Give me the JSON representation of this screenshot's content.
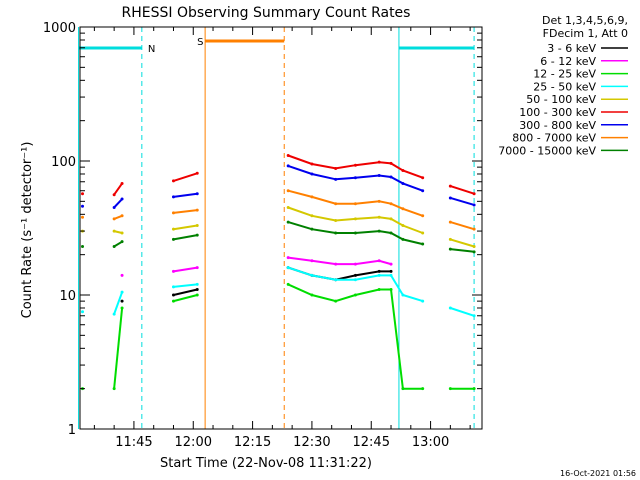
{
  "chart_data": {
    "type": "line",
    "title": "RHESSI Observing Summary Count Rates",
    "xlabel": "Start Time (22-Nov-08 11:31:22)",
    "ylabel": "Count Rate (s⁻¹ detector⁻¹)",
    "ylog": true,
    "ylim": [
      1,
      1000
    ],
    "xlim": [
      "11:31:22",
      "13:13:00"
    ],
    "x_ticks": [
      "11:45",
      "12:00",
      "12:15",
      "12:30",
      "12:45",
      "13:00"
    ],
    "y_ticks": [
      "1",
      "10",
      "100",
      "1000"
    ],
    "legend": {
      "placement": "right",
      "header": [
        "Det 1,3,4,5,6,9,",
        "FDecim 1, Att 0"
      ],
      "entries": [
        {
          "label": "3 - 6 keV",
          "color": "#000000"
        },
        {
          "label": "6 - 12 keV",
          "color": "#ff00ff"
        },
        {
          "label": "12 - 25 keV",
          "color": "#00dd00"
        },
        {
          "label": "25 - 50 keV",
          "color": "#00ffff"
        },
        {
          "label": "50 - 100 keV",
          "color": "#d4c800"
        },
        {
          "label": "100 - 300 keV",
          "color": "#ee0000"
        },
        {
          "label": "300 - 800 keV",
          "color": "#0000ee"
        },
        {
          "label": "800 - 7000 keV",
          "color": "#ff8000"
        },
        {
          "label": "7000 - 15000 keV",
          "color": "#008000"
        }
      ]
    },
    "annotations": [
      {
        "text": "N",
        "color": "#00dddd",
        "kind": "night",
        "spans": [
          [
            "11:31",
            "11:47"
          ],
          [
            "12:52",
            "13:11"
          ]
        ]
      },
      {
        "text": "S",
        "color": "#ff8000",
        "kind": "saa",
        "spans": [
          [
            "12:03",
            "12:23"
          ]
        ]
      }
    ],
    "series": [
      {
        "name": "100 - 300 keV",
        "color": "#ee0000",
        "points": [
          [
            "11:32",
            57
          ],
          [
            "11:40",
            56
          ],
          [
            "11:42",
            68
          ],
          [
            "11:55",
            71
          ],
          [
            "12:01",
            81
          ],
          [
            "12:24",
            110
          ],
          [
            "12:30",
            95
          ],
          [
            "12:36",
            88
          ],
          [
            "12:41",
            93
          ],
          [
            "12:47",
            98
          ],
          [
            "12:50",
            96
          ],
          [
            "12:53",
            85
          ],
          [
            "12:58",
            75
          ],
          [
            "13:05",
            65
          ],
          [
            "13:11",
            57
          ]
        ]
      },
      {
        "name": "300 - 800 keV",
        "color": "#0000ee",
        "points": [
          [
            "11:32",
            46
          ],
          [
            "11:40",
            45
          ],
          [
            "11:42",
            52
          ],
          [
            "11:55",
            54
          ],
          [
            "12:01",
            57
          ],
          [
            "12:24",
            92
          ],
          [
            "12:30",
            80
          ],
          [
            "12:36",
            73
          ],
          [
            "12:41",
            75
          ],
          [
            "12:47",
            78
          ],
          [
            "12:50",
            76
          ],
          [
            "12:53",
            68
          ],
          [
            "12:58",
            60
          ],
          [
            "13:05",
            53
          ],
          [
            "13:11",
            47
          ]
        ]
      },
      {
        "name": "800 - 7000 keV",
        "color": "#ff8000",
        "points": [
          [
            "11:32",
            38
          ],
          [
            "11:40",
            37
          ],
          [
            "11:42",
            39
          ],
          [
            "11:55",
            41
          ],
          [
            "12:01",
            43
          ],
          [
            "12:24",
            60
          ],
          [
            "12:30",
            54
          ],
          [
            "12:36",
            48
          ],
          [
            "12:41",
            48
          ],
          [
            "12:47",
            50
          ],
          [
            "12:50",
            48
          ],
          [
            "12:53",
            44
          ],
          [
            "12:58",
            39
          ],
          [
            "13:05",
            35
          ],
          [
            "13:11",
            31
          ]
        ]
      },
      {
        "name": "50 - 100 keV",
        "color": "#d4c800",
        "points": [
          [
            "11:32",
            30
          ],
          [
            "11:40",
            30
          ],
          [
            "11:42",
            29
          ],
          [
            "11:55",
            31
          ],
          [
            "12:01",
            33
          ],
          [
            "12:24",
            45
          ],
          [
            "12:30",
            39
          ],
          [
            "12:36",
            36
          ],
          [
            "12:41",
            37
          ],
          [
            "12:47",
            38
          ],
          [
            "12:50",
            37
          ],
          [
            "12:53",
            33
          ],
          [
            "12:58",
            29
          ],
          [
            "13:05",
            26
          ],
          [
            "13:11",
            23
          ]
        ]
      },
      {
        "name": "7000 - 15000 keV",
        "color": "#008000",
        "points": [
          [
            "11:32",
            23
          ],
          [
            "11:40",
            23
          ],
          [
            "11:42",
            25
          ],
          [
            "11:55",
            26
          ],
          [
            "12:01",
            28
          ],
          [
            "12:24",
            35
          ],
          [
            "12:30",
            31
          ],
          [
            "12:36",
            29
          ],
          [
            "12:41",
            29
          ],
          [
            "12:47",
            30
          ],
          [
            "12:50",
            29
          ],
          [
            "12:53",
            26
          ],
          [
            "12:58",
            24
          ],
          [
            "13:05",
            22
          ],
          [
            "13:11",
            21
          ]
        ]
      },
      {
        "name": "6 - 12 keV",
        "color": "#ff00ff",
        "points": [
          [
            "11:42",
            14
          ],
          [
            "11:55",
            15
          ],
          [
            "12:01",
            16
          ],
          [
            "12:24",
            19
          ],
          [
            "12:30",
            18
          ],
          [
            "12:36",
            17
          ],
          [
            "12:41",
            17
          ],
          [
            "12:47",
            18
          ],
          [
            "12:50",
            17
          ]
        ]
      },
      {
        "name": "3 - 6 keV",
        "color": "#000000",
        "points": [
          [
            "11:42",
            9
          ],
          [
            "11:55",
            10
          ],
          [
            "12:01",
            11
          ],
          [
            "12:24",
            16
          ],
          [
            "12:30",
            14
          ],
          [
            "12:36",
            13
          ],
          [
            "12:41",
            14
          ],
          [
            "12:47",
            15
          ],
          [
            "12:50",
            15
          ]
        ]
      },
      {
        "name": "25 - 50 keV",
        "color": "#00ffff",
        "points": [
          [
            "11:32",
            7.5
          ],
          [
            "11:40",
            7.2
          ],
          [
            "11:42",
            10.5
          ],
          [
            "11:55",
            11.5
          ],
          [
            "12:01",
            12
          ],
          [
            "12:24",
            16
          ],
          [
            "12:30",
            14
          ],
          [
            "12:36",
            13
          ],
          [
            "12:41",
            13
          ],
          [
            "12:47",
            14
          ],
          [
            "12:50",
            14
          ],
          [
            "12:53",
            10
          ],
          [
            "12:58",
            9
          ],
          [
            "13:05",
            8
          ],
          [
            "13:11",
            7
          ]
        ]
      },
      {
        "name": "12 - 25 keV",
        "color": "#00dd00",
        "points": [
          [
            "11:32",
            2
          ],
          [
            "11:40",
            2
          ],
          [
            "11:42",
            8
          ],
          [
            "11:55",
            9
          ],
          [
            "12:01",
            10
          ],
          [
            "12:24",
            12
          ],
          [
            "12:30",
            10
          ],
          [
            "12:36",
            9
          ],
          [
            "12:41",
            10
          ],
          [
            "12:47",
            11
          ],
          [
            "12:50",
            11
          ],
          [
            "12:53",
            2
          ],
          [
            "12:58",
            2
          ],
          [
            "13:05",
            2
          ],
          [
            "13:11",
            2
          ]
        ]
      }
    ]
  },
  "footer": {
    "timestamp": "16-Oct-2021 01:56"
  }
}
